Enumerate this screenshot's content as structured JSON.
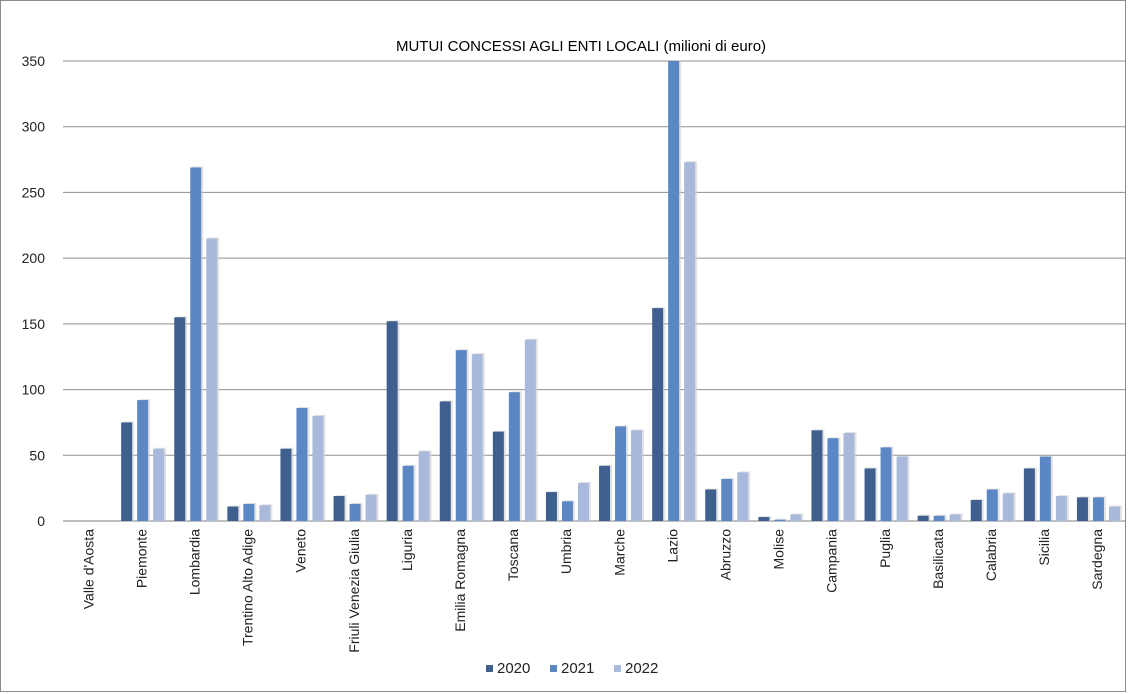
{
  "chart_data": {
    "type": "bar",
    "title": "MUTUI CONCESSI AGLI ENTI LOCALI  (milioni di euro)",
    "xlabel": "",
    "ylabel": "",
    "ylim": [
      0,
      350
    ],
    "yticks": [
      0,
      50,
      100,
      150,
      200,
      250,
      300,
      350
    ],
    "grid": true,
    "legend_position": "bottom",
    "categories": [
      "Valle d'Aosta",
      "Piemonte",
      "Lombardia",
      "Trentino Alto Adige",
      "Veneto",
      "Friuli Venezia Giulia",
      "Liguria",
      "Emilia Romagna",
      "Toscana",
      "Umbria",
      "Marche",
      "Lazio",
      "Abruzzo",
      "Molise",
      "Campania",
      "Puglia",
      "Basilicata",
      "Calabria",
      "Sicilia",
      "Sardegna"
    ],
    "series": [
      {
        "name": "2020",
        "color": "#3f5f8f",
        "values": [
          0,
          75,
          155,
          11,
          55,
          19,
          152,
          91,
          68,
          22,
          42,
          162,
          24,
          3,
          69,
          40,
          4,
          16,
          40,
          18
        ]
      },
      {
        "name": "2021",
        "color": "#5b87c4",
        "values": [
          0,
          92,
          269,
          13,
          86,
          13,
          42,
          130,
          98,
          15,
          72,
          350,
          32,
          1,
          63,
          56,
          4,
          24,
          49,
          18
        ]
      },
      {
        "name": "2022",
        "color": "#a9b9db",
        "values": [
          0,
          55,
          215,
          12,
          80,
          20,
          53,
          127,
          138,
          29,
          69,
          273,
          37,
          5,
          67,
          49,
          5,
          21,
          19,
          11
        ]
      }
    ]
  }
}
